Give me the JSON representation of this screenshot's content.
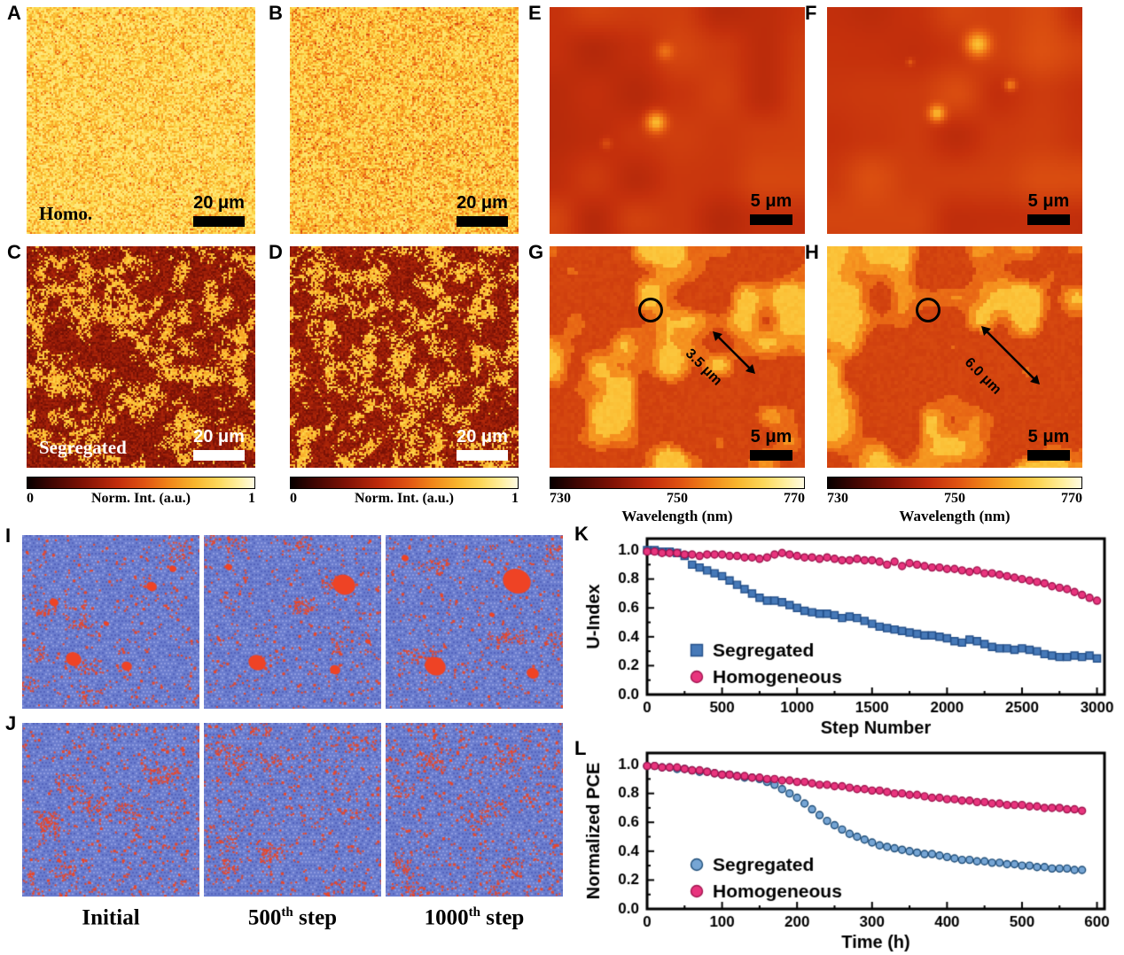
{
  "figure": {
    "panels": {
      "A": {
        "label": "A",
        "annotation": "Homo.",
        "scalebar": "20 μm"
      },
      "B": {
        "label": "B",
        "scalebar": "20 μm"
      },
      "C": {
        "label": "C",
        "annotation": "Segregated",
        "scalebar": "20 μm"
      },
      "D": {
        "label": "D",
        "scalebar": "20 μm"
      },
      "E": {
        "label": "E",
        "scalebar": "5 μm"
      },
      "F": {
        "label": "F",
        "scalebar": "5 μm"
      },
      "G": {
        "label": "G",
        "scalebar": "5 μm",
        "arrow_label": "3.5 μm"
      },
      "H": {
        "label": "H",
        "scalebar": "5 μm",
        "arrow_label": "6.0 μm"
      },
      "I": {
        "label": "I"
      },
      "J": {
        "label": "J"
      },
      "K": {
        "label": "K"
      },
      "L": {
        "label": "L"
      }
    },
    "colorbars": {
      "intensity": {
        "min": "0",
        "max": "1",
        "label": "Norm. Int. (a.u.)"
      },
      "wavelength": {
        "ticks": [
          "730",
          "750",
          "770"
        ],
        "label": "Wavelength (nm)"
      }
    },
    "sim_labels": [
      {
        "pre": "Initial",
        "sup": "",
        "post": ""
      },
      {
        "pre": "500",
        "sup": "th",
        "post": " step"
      },
      {
        "pre": "1000",
        "sup": "th",
        "post": " step"
      }
    ]
  },
  "chart_data": [
    {
      "panel": "K",
      "type": "scatter",
      "xlabel": "Step Number",
      "ylabel": "U-Index",
      "xlim": [
        0,
        3050
      ],
      "ylim": [
        0,
        1.08
      ],
      "xticks": [
        0,
        500,
        1000,
        1500,
        2000,
        2500,
        3000
      ],
      "yticks": [
        0,
        0.2,
        0.4,
        0.6,
        0.8,
        1.0
      ],
      "legend_position": "lower-left-inside",
      "grid": false,
      "x": [
        0,
        50,
        100,
        150,
        200,
        250,
        300,
        350,
        400,
        450,
        500,
        550,
        600,
        650,
        700,
        750,
        800,
        850,
        900,
        950,
        1000,
        1050,
        1100,
        1150,
        1200,
        1250,
        1300,
        1350,
        1400,
        1450,
        1500,
        1550,
        1600,
        1650,
        1700,
        1750,
        1800,
        1850,
        1900,
        1950,
        2000,
        2050,
        2100,
        2150,
        2200,
        2250,
        2300,
        2350,
        2400,
        2450,
        2500,
        2550,
        2600,
        2650,
        2700,
        2750,
        2800,
        2850,
        2900,
        2950,
        3000
      ],
      "series": [
        {
          "name": "Segregated",
          "marker": "square",
          "color": "#4679b8",
          "edge": "#24508a",
          "y": [
            1.0,
            1.0,
            0.99,
            0.99,
            0.98,
            0.96,
            0.9,
            0.88,
            0.86,
            0.84,
            0.82,
            0.79,
            0.76,
            0.73,
            0.7,
            0.67,
            0.65,
            0.65,
            0.64,
            0.62,
            0.6,
            0.58,
            0.57,
            0.56,
            0.56,
            0.55,
            0.53,
            0.54,
            0.53,
            0.51,
            0.49,
            0.47,
            0.46,
            0.45,
            0.44,
            0.43,
            0.42,
            0.41,
            0.41,
            0.4,
            0.39,
            0.37,
            0.36,
            0.38,
            0.37,
            0.35,
            0.33,
            0.32,
            0.32,
            0.31,
            0.32,
            0.31,
            0.3,
            0.28,
            0.27,
            0.26,
            0.26,
            0.27,
            0.26,
            0.27,
            0.25
          ]
        },
        {
          "name": "Homogeneous",
          "marker": "circle",
          "color": "#e8357e",
          "edge": "#a1134e",
          "y": [
            0.99,
            0.99,
            0.98,
            0.98,
            0.98,
            0.97,
            0.97,
            0.96,
            0.97,
            0.97,
            0.97,
            0.96,
            0.96,
            0.95,
            0.95,
            0.94,
            0.95,
            0.97,
            0.98,
            0.97,
            0.96,
            0.95,
            0.95,
            0.94,
            0.95,
            0.94,
            0.93,
            0.93,
            0.94,
            0.93,
            0.93,
            0.92,
            0.9,
            0.92,
            0.89,
            0.91,
            0.9,
            0.89,
            0.88,
            0.88,
            0.87,
            0.87,
            0.86,
            0.85,
            0.86,
            0.84,
            0.84,
            0.83,
            0.82,
            0.81,
            0.8,
            0.79,
            0.78,
            0.77,
            0.75,
            0.74,
            0.73,
            0.71,
            0.69,
            0.67,
            0.65
          ]
        }
      ]
    },
    {
      "panel": "L",
      "type": "scatter",
      "xlabel": "Time (h)",
      "ylabel": "Normalized PCE",
      "xlim": [
        0,
        610
      ],
      "ylim": [
        0,
        1.08
      ],
      "xticks": [
        0,
        100,
        200,
        300,
        400,
        500,
        600
      ],
      "yticks": [
        0,
        0.2,
        0.4,
        0.6,
        0.8,
        1.0
      ],
      "legend_position": "lower-left-inside",
      "grid": false,
      "x": [
        0,
        10,
        20,
        30,
        40,
        50,
        60,
        70,
        80,
        90,
        100,
        110,
        120,
        130,
        140,
        150,
        160,
        170,
        180,
        190,
        200,
        210,
        220,
        230,
        240,
        250,
        260,
        270,
        280,
        290,
        300,
        310,
        320,
        330,
        340,
        350,
        360,
        370,
        380,
        390,
        400,
        410,
        420,
        430,
        440,
        450,
        460,
        470,
        480,
        490,
        500,
        510,
        520,
        530,
        540,
        550,
        560,
        570,
        580
      ],
      "series": [
        {
          "name": "Segregated",
          "marker": "circle",
          "color": "#76a5d4",
          "edge": "#1f4e79",
          "y": [
            0.99,
            0.99,
            0.98,
            0.98,
            0.97,
            0.97,
            0.96,
            0.95,
            0.95,
            0.94,
            0.93,
            0.93,
            0.92,
            0.91,
            0.91,
            0.9,
            0.88,
            0.86,
            0.83,
            0.8,
            0.77,
            0.73,
            0.69,
            0.65,
            0.61,
            0.58,
            0.55,
            0.52,
            0.5,
            0.48,
            0.46,
            0.44,
            0.43,
            0.42,
            0.41,
            0.4,
            0.39,
            0.38,
            0.38,
            0.37,
            0.36,
            0.35,
            0.34,
            0.34,
            0.33,
            0.33,
            0.32,
            0.32,
            0.31,
            0.31,
            0.3,
            0.3,
            0.29,
            0.29,
            0.28,
            0.28,
            0.28,
            0.27,
            0.27
          ]
        },
        {
          "name": "Homogeneous",
          "marker": "circle",
          "color": "#e8357e",
          "edge": "#a1134e",
          "y": [
            0.99,
            0.99,
            0.98,
            0.98,
            0.98,
            0.97,
            0.96,
            0.96,
            0.95,
            0.94,
            0.93,
            0.93,
            0.92,
            0.92,
            0.91,
            0.91,
            0.9,
            0.9,
            0.89,
            0.89,
            0.88,
            0.88,
            0.87,
            0.86,
            0.86,
            0.85,
            0.85,
            0.84,
            0.83,
            0.83,
            0.82,
            0.82,
            0.81,
            0.8,
            0.8,
            0.79,
            0.79,
            0.78,
            0.77,
            0.77,
            0.76,
            0.76,
            0.75,
            0.75,
            0.74,
            0.74,
            0.73,
            0.73,
            0.72,
            0.72,
            0.72,
            0.71,
            0.71,
            0.7,
            0.7,
            0.7,
            0.69,
            0.69,
            0.68
          ]
        }
      ]
    }
  ]
}
